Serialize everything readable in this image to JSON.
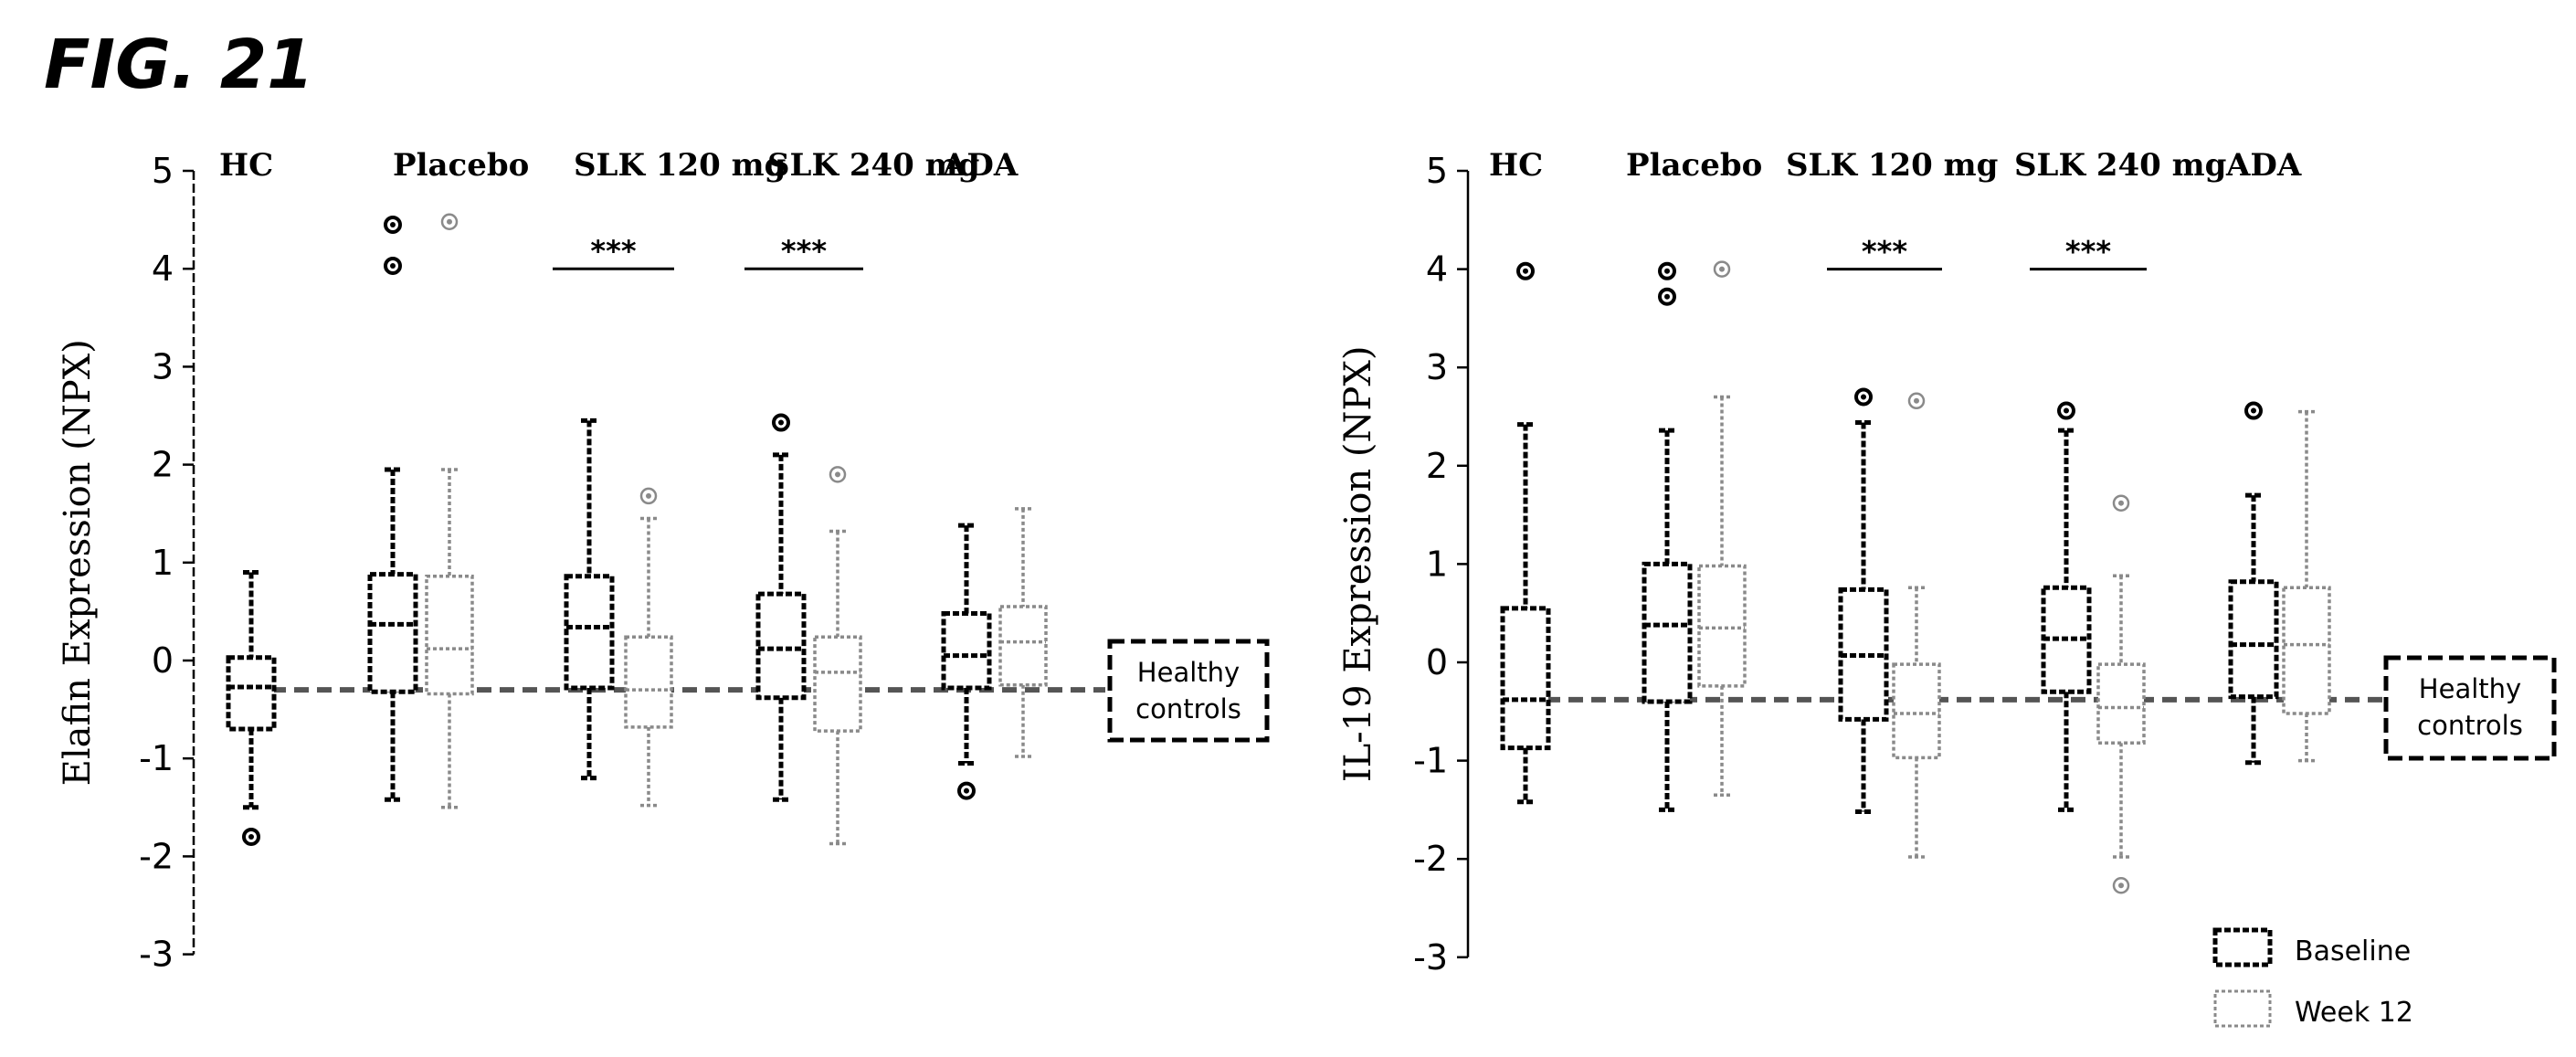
{
  "figure_label": "FIG. 21",
  "colors": {
    "baseline": "#000000",
    "week12": "#8a8a8a",
    "reference_line": "#555555"
  },
  "legend": {
    "baseline": "Baseline",
    "week12": "Week 12"
  },
  "chart_data": [
    {
      "type": "box",
      "title": "",
      "xlabel": "",
      "ylabel": "Elafin Expression (NPX)",
      "ylim": [
        -3,
        5
      ],
      "yticks": [
        -3,
        -2,
        -1,
        0,
        1,
        2,
        3,
        4,
        5
      ],
      "reference_line": {
        "value": -0.3,
        "label_line1": "Healthy",
        "label_line2": "controls"
      },
      "groups": [
        {
          "name": "HC",
          "significance": "",
          "boxes": [
            {
              "series": "Baseline",
              "min": -1.5,
              "q1": -0.7,
              "median": -0.27,
              "q3": 0.03,
              "max": 0.9,
              "outliers": [
                -1.8
              ]
            }
          ]
        },
        {
          "name": "Placebo",
          "significance": "",
          "boxes": [
            {
              "series": "Baseline",
              "min": -1.42,
              "q1": -0.32,
              "median": 0.37,
              "q3": 0.88,
              "max": 1.95,
              "outliers": [
                4.45,
                4.03
              ]
            },
            {
              "series": "Week 12",
              "min": -1.5,
              "q1": -0.34,
              "median": 0.12,
              "q3": 0.86,
              "max": 1.95,
              "outliers": [
                4.48
              ]
            }
          ]
        },
        {
          "name": "SLK 120 mg",
          "significance": "***",
          "boxes": [
            {
              "series": "Baseline",
              "min": -1.2,
              "q1": -0.28,
              "median": 0.34,
              "q3": 0.86,
              "max": 2.45,
              "outliers": []
            },
            {
              "series": "Week 12",
              "min": -1.48,
              "q1": -0.68,
              "median": -0.3,
              "q3": 0.24,
              "max": 1.45,
              "outliers": [
                1.68
              ]
            }
          ]
        },
        {
          "name": "SLK 240 mg",
          "significance": "***",
          "boxes": [
            {
              "series": "Baseline",
              "min": -1.42,
              "q1": -0.38,
              "median": 0.12,
              "q3": 0.68,
              "max": 2.1,
              "outliers": [
                2.43
              ]
            },
            {
              "series": "Week 12",
              "min": -1.87,
              "q1": -0.72,
              "median": -0.12,
              "q3": 0.24,
              "max": 1.32,
              "outliers": [
                1.9
              ]
            }
          ]
        },
        {
          "name": "ADA",
          "significance": "",
          "boxes": [
            {
              "series": "Baseline",
              "min": -1.05,
              "q1": -0.28,
              "median": 0.05,
              "q3": 0.48,
              "max": 1.38,
              "outliers": [
                -1.33
              ]
            },
            {
              "series": "Week 12",
              "min": -0.98,
              "q1": -0.25,
              "median": 0.19,
              "q3": 0.55,
              "max": 1.55,
              "outliers": []
            }
          ]
        }
      ]
    },
    {
      "type": "box",
      "title": "",
      "xlabel": "",
      "ylabel": "IL-19 Expression (NPX)",
      "ylim": [
        -3,
        5
      ],
      "yticks": [
        -3,
        -2,
        -1,
        0,
        1,
        2,
        3,
        4,
        5
      ],
      "reference_line": {
        "value": -0.38,
        "label_line1": "Healthy",
        "label_line2": "controls"
      },
      "groups": [
        {
          "name": "HC",
          "significance": "",
          "boxes": [
            {
              "series": "Baseline",
              "min": -1.42,
              "q1": -0.87,
              "median": -0.38,
              "q3": 0.55,
              "max": 2.42,
              "outliers": [
                3.98
              ]
            }
          ]
        },
        {
          "name": "Placebo",
          "significance": "",
          "boxes": [
            {
              "series": "Baseline",
              "min": -1.5,
              "q1": -0.4,
              "median": 0.38,
              "q3": 1.0,
              "max": 2.36,
              "outliers": [
                3.98,
                3.72
              ]
            },
            {
              "series": "Week 12",
              "min": -1.35,
              "q1": -0.24,
              "median": 0.35,
              "q3": 0.98,
              "max": 2.7,
              "outliers": [
                4.0
              ]
            }
          ]
        },
        {
          "name": "SLK 120 mg",
          "significance": "***",
          "boxes": [
            {
              "series": "Baseline",
              "min": -1.52,
              "q1": -0.58,
              "median": 0.07,
              "q3": 0.74,
              "max": 2.44,
              "outliers": [
                2.7
              ]
            },
            {
              "series": "Week 12",
              "min": -1.98,
              "q1": -0.97,
              "median": -0.52,
              "q3": -0.02,
              "max": 0.76,
              "outliers": [
                2.66
              ]
            }
          ]
        },
        {
          "name": "SLK 240 mg",
          "significance": "***",
          "boxes": [
            {
              "series": "Baseline",
              "min": -1.5,
              "q1": -0.3,
              "median": 0.24,
              "q3": 0.76,
              "max": 2.36,
              "outliers": [
                2.56
              ]
            },
            {
              "series": "Week 12",
              "min": -1.98,
              "q1": -0.82,
              "median": -0.46,
              "q3": -0.02,
              "max": 0.88,
              "outliers": [
                1.62,
                -2.27
              ]
            }
          ]
        },
        {
          "name": "ADA",
          "significance": "",
          "boxes": [
            {
              "series": "Baseline",
              "min": -1.02,
              "q1": -0.35,
              "median": 0.18,
              "q3": 0.82,
              "max": 1.7,
              "outliers": [
                2.56
              ]
            },
            {
              "series": "Week 12",
              "min": -1.0,
              "q1": -0.52,
              "median": 0.18,
              "q3": 0.76,
              "max": 2.55,
              "outliers": []
            }
          ]
        }
      ]
    }
  ]
}
